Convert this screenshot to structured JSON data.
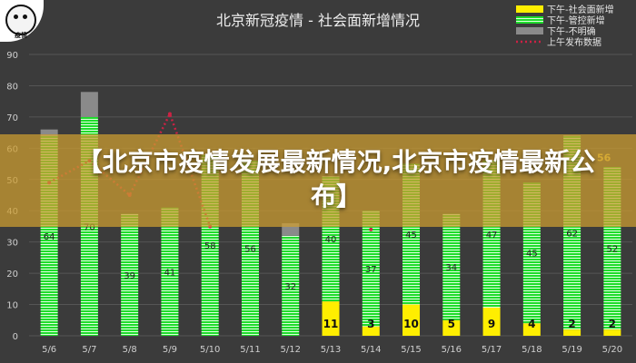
{
  "overlay": {
    "logo_text": "疫情",
    "headline": "【北京市疫情发展最新情况,北京市疫情最新公布】"
  },
  "chart_data": {
    "type": "bar",
    "title": "北京新冠疫情 - 社会面新增情况",
    "categories": [
      "5/6",
      "5/7",
      "5/8",
      "5/9",
      "5/10",
      "5/11",
      "5/12",
      "5/13",
      "5/14",
      "5/15",
      "5/16",
      "5/17",
      "5/18",
      "5/19",
      "5/20"
    ],
    "series": [
      {
        "name": "下午-社会面新增",
        "color": "#ffee00",
        "values": [
          0,
          0,
          0,
          0,
          0,
          0,
          0,
          11,
          3,
          10,
          5,
          9,
          4,
          2,
          2
        ]
      },
      {
        "name": "下午-管控新增",
        "color": "#22dd33",
        "values": [
          64,
          70,
          39,
          41,
          58,
          56,
          32,
          40,
          37,
          45,
          34,
          47,
          45,
          62,
          52
        ]
      },
      {
        "name": "下午-不明确",
        "color": "#8a8a8a",
        "values": [
          2,
          8,
          0,
          0,
          0,
          0,
          4,
          0,
          0,
          0,
          0,
          0,
          0,
          0,
          0
        ]
      }
    ],
    "line_series": {
      "name": "上午发布数据",
      "color": "#cc2244",
      "values": [
        49,
        56,
        45,
        71,
        35,
        null,
        null,
        null,
        34,
        null,
        null,
        null,
        null,
        null,
        null
      ]
    },
    "data_labels": {
      "管控": [
        "64",
        "70",
        "39",
        "41",
        "58",
        "56",
        "32",
        "40",
        "37",
        "45",
        "34",
        "47",
        "45",
        "62",
        "52"
      ],
      "社会面": [
        "",
        "",
        "",
        "",
        "",
        "",
        "",
        "11",
        "3",
        "10",
        "5",
        "9",
        "4",
        "2",
        "2"
      ]
    },
    "extra_label": "56",
    "yticks": [
      "0",
      "10",
      "20",
      "30",
      "40",
      "50",
      "60",
      "70",
      "80",
      "90"
    ],
    "ylim": [
      0,
      90
    ],
    "grid": true,
    "legend_position": "top-right"
  }
}
